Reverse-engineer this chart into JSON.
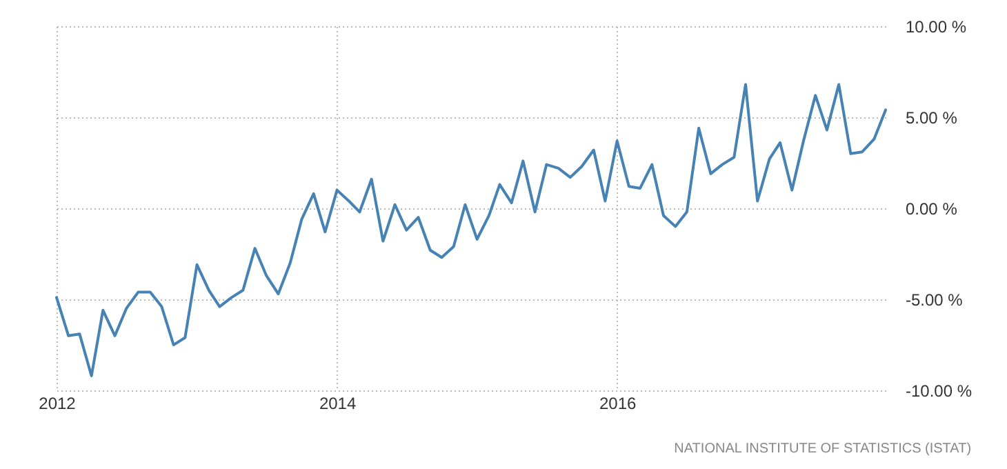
{
  "chart_data": {
    "type": "line",
    "x": [
      "2012-01",
      "2012-02",
      "2012-03",
      "2012-04",
      "2012-05",
      "2012-06",
      "2012-07",
      "2012-08",
      "2012-09",
      "2012-10",
      "2012-11",
      "2012-12",
      "2013-01",
      "2013-02",
      "2013-03",
      "2013-04",
      "2013-05",
      "2013-06",
      "2013-07",
      "2013-08",
      "2013-09",
      "2013-10",
      "2013-11",
      "2013-12",
      "2014-01",
      "2014-02",
      "2014-03",
      "2014-04",
      "2014-05",
      "2014-06",
      "2014-07",
      "2014-08",
      "2014-09",
      "2014-10",
      "2014-11",
      "2014-12",
      "2015-01",
      "2015-02",
      "2015-03",
      "2015-04",
      "2015-05",
      "2015-06",
      "2015-07",
      "2015-08",
      "2015-09",
      "2015-10",
      "2015-11",
      "2015-12",
      "2016-01",
      "2016-02",
      "2016-03",
      "2016-04",
      "2016-05",
      "2016-06",
      "2016-07",
      "2016-08",
      "2016-09",
      "2016-10",
      "2016-11",
      "2016-12",
      "2017-01",
      "2017-02",
      "2017-03",
      "2017-04",
      "2017-05",
      "2017-06",
      "2017-07",
      "2017-08",
      "2017-09",
      "2017-10",
      "2017-11",
      "2017-12"
    ],
    "series": [
      {
        "color": "#4682b4",
        "values": [
          -4.9,
          -7.0,
          -6.9,
          -9.2,
          -5.6,
          -7.0,
          -5.5,
          -4.6,
          -4.6,
          -5.4,
          -7.5,
          -7.1,
          -3.1,
          -4.5,
          -5.4,
          -4.9,
          -4.5,
          -2.2,
          -3.7,
          -4.7,
          -3.0,
          -0.6,
          0.8,
          -1.3,
          1.0,
          0.4,
          -0.2,
          1.6,
          -1.8,
          0.2,
          -1.2,
          -0.5,
          -2.3,
          -2.7,
          -2.1,
          0.2,
          -1.7,
          -0.4,
          1.3,
          0.3,
          2.6,
          -0.2,
          2.4,
          2.2,
          1.7,
          2.3,
          3.2,
          0.4,
          3.7,
          1.2,
          1.1,
          2.4,
          -0.4,
          -1.0,
          -0.2,
          4.4,
          1.9,
          2.4,
          2.8,
          6.8,
          0.4,
          2.7,
          3.6,
          1.0,
          3.7,
          6.2,
          4.3,
          6.8,
          3.0,
          3.1,
          3.8,
          5.4
        ]
      }
    ],
    "xlim": [
      "2012-01",
      "2017-12"
    ],
    "xticks": [
      "2012",
      "2014",
      "2016"
    ],
    "ylim": [
      -10,
      10
    ],
    "yticks": [
      {
        "value": -10,
        "label": "-10.00 %"
      },
      {
        "value": -5,
        "label": "-5.00 %"
      },
      {
        "value": 0,
        "label": "0.00 %"
      },
      {
        "value": 5,
        "label": "5.00 %"
      },
      {
        "value": 10,
        "label": "10.00 %"
      }
    ],
    "grid": true,
    "annotations": [
      "NATIONAL INSTITUTE OF STATISTICS (ISTAT)"
    ]
  }
}
